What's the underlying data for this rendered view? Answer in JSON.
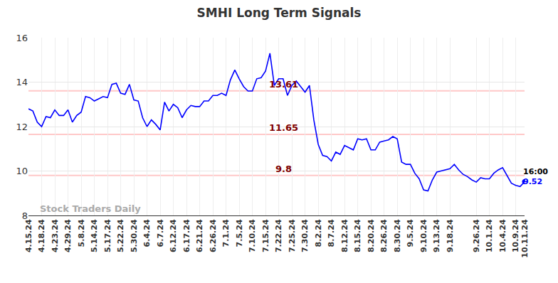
{
  "chart_data": {
    "type": "line",
    "title": "SMHI Long Term Signals",
    "categories": [
      "4.15.24",
      null,
      null,
      "4.18.24",
      null,
      null,
      "4.23.24",
      null,
      null,
      "4.29.24",
      null,
      null,
      "5.8.24",
      null,
      null,
      "5.14.24",
      null,
      null,
      "5.17.24",
      null,
      null,
      "5.22.24",
      null,
      null,
      "5.30.24",
      null,
      null,
      "6.4.24",
      null,
      null,
      "6.7.24",
      null,
      null,
      "6.12.24",
      null,
      null,
      "6.17.24",
      null,
      null,
      "6.21.24",
      null,
      null,
      "6.26.24",
      null,
      null,
      "7.1.24",
      null,
      null,
      "7.5.24",
      null,
      null,
      "7.10.24",
      null,
      null,
      "7.15.24",
      null,
      null,
      "7.22.24",
      null,
      null,
      "7.25.24",
      null,
      null,
      "7.30.24",
      null,
      null,
      "8.2.24",
      null,
      null,
      "8.7.24",
      null,
      null,
      "8.12.24",
      null,
      null,
      "8.15.24",
      null,
      null,
      "8.20.24",
      null,
      null,
      "8.26.24",
      null,
      null,
      "8.30.24",
      null,
      null,
      "9.5.24",
      null,
      null,
      "9.10.24",
      null,
      null,
      "9.13.24",
      null,
      null,
      "9.18.24",
      null,
      null,
      null,
      null,
      null,
      "9.26.24",
      null,
      null,
      "10.1.24",
      null,
      null,
      "10.4.24",
      null,
      null,
      "10.9.24",
      null,
      "10.11.24"
    ],
    "values": [
      12.8,
      12.7,
      12.2,
      12.0,
      12.45,
      12.4,
      12.75,
      12.5,
      12.5,
      12.75,
      12.2,
      12.5,
      12.65,
      13.35,
      13.3,
      13.15,
      13.25,
      13.35,
      13.3,
      13.9,
      13.95,
      13.5,
      13.45,
      13.9,
      13.2,
      13.15,
      12.4,
      12.0,
      12.3,
      12.1,
      11.85,
      13.1,
      12.7,
      13.0,
      12.85,
      12.4,
      12.75,
      12.95,
      12.9,
      12.9,
      13.15,
      13.15,
      13.4,
      13.4,
      13.5,
      13.4,
      14.1,
      14.55,
      14.15,
      13.8,
      13.6,
      13.6,
      14.15,
      14.2,
      14.5,
      15.3,
      13.85,
      14.15,
      14.15,
      13.4,
      13.85,
      14.05,
      13.8,
      13.55,
      13.85,
      12.3,
      11.2,
      10.7,
      10.65,
      10.45,
      10.85,
      10.75,
      11.15,
      11.05,
      10.95,
      11.45,
      11.4,
      11.45,
      10.95,
      10.95,
      11.3,
      11.35,
      11.4,
      11.55,
      11.45,
      10.4,
      10.3,
      10.3,
      9.9,
      9.65,
      9.15,
      9.1,
      9.6,
      9.95,
      10.0,
      10.05,
      10.1,
      10.3,
      10.05,
      9.85,
      9.75,
      9.6,
      9.5,
      9.7,
      9.65,
      9.65,
      9.9,
      10.05,
      10.15,
      9.8,
      9.45,
      9.35,
      9.3,
      9.52
    ],
    "color": "#0000ff",
    "ylim": [
      8,
      16
    ],
    "yticks": [
      8,
      10,
      12,
      14,
      16
    ],
    "grid": true,
    "signal_lines": [
      13.61,
      11.65,
      9.8
    ],
    "last_point_time": "16:00",
    "watermark": "Stock Traders Daily"
  }
}
